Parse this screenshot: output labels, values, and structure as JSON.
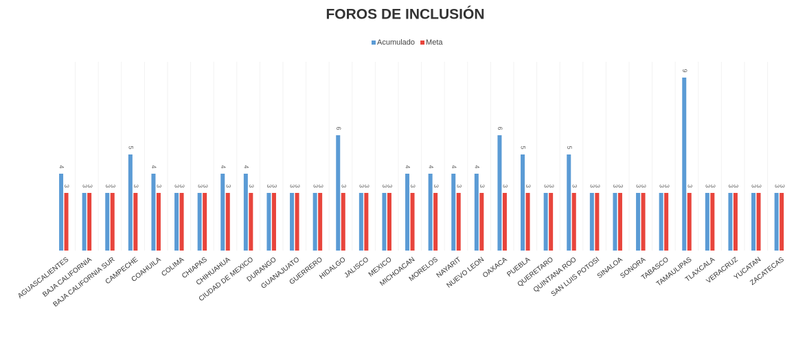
{
  "chart_data": {
    "type": "bar",
    "title": "FOROS DE INCLUSIÓN",
    "categories": [
      "AGUASCALIENTES",
      "BAJA CALIFORNIA",
      "BAJA CALIFORNIA SUR",
      "CAMPECHE",
      "COAHUILA",
      "COLIMA",
      "CHIAPAS",
      "CHIHUAHUA",
      "CIUDAD DE MEXICO",
      "DURANGO",
      "GUANAJUATO",
      "GUERRERO",
      "HIDALGO",
      "JALISCO",
      "MEXICO",
      "MICHOACAN",
      "MORELOS",
      "NAYARIT",
      "NUEVO LEON",
      "OAXACA",
      "PUEBLA",
      "QUERETARO",
      "QUINTANA ROO",
      "SAN LUIS POTOSI",
      "SINALOA",
      "SONORA",
      "TABASCO",
      "TAMAULIPAS",
      "TLAXCALA",
      "VERACRUZ",
      "YUCATAN",
      "ZACATECAS"
    ],
    "series": [
      {
        "name": "Acumulado",
        "color": "#5b9bd5",
        "values": [
          4,
          3,
          3,
          5,
          4,
          3,
          3,
          4,
          4,
          3,
          3,
          3,
          6,
          3,
          3,
          4,
          4,
          4,
          4,
          6,
          5,
          3,
          5,
          3,
          3,
          3,
          3,
          9,
          3,
          3,
          3,
          3
        ]
      },
      {
        "name": "Meta",
        "color": "#e8453c",
        "values": [
          3,
          3,
          3,
          3,
          3,
          3,
          3,
          3,
          3,
          3,
          3,
          3,
          3,
          3,
          3,
          3,
          3,
          3,
          3,
          3,
          3,
          3,
          3,
          3,
          3,
          3,
          3,
          3,
          3,
          3,
          3,
          3
        ]
      }
    ],
    "ylim": [
      0,
      10
    ],
    "legend": "top"
  }
}
